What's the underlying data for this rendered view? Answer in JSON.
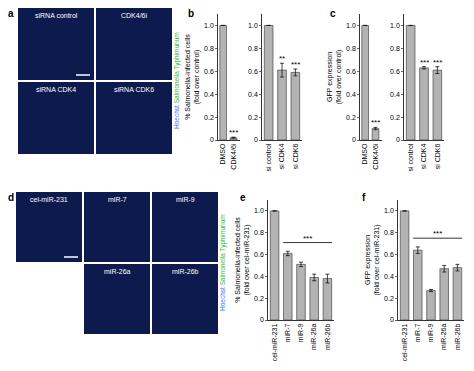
{
  "chart_data": [
    {
      "panel_label": "b",
      "type": "bar",
      "y_label": [
        "% Salmonella-infected cells",
        "(fold over control)"
      ],
      "categories": [
        "DMSO",
        "CDK4/6i"
      ],
      "values": [
        1,
        0.02
      ],
      "errors": [
        0,
        0.005
      ],
      "color": "#b3b3b3",
      "grid": false,
      "ylim": [
        0,
        1.1
      ],
      "yticks": [
        0,
        0.2,
        0.4,
        0.6,
        0.8,
        {
          "value": 1,
          "label": "1.0"
        }
      ],
      "significance": [
        {
          "category": "CDK4/6i",
          "text": "***"
        }
      ]
    },
    {
      "type": "bar",
      "categories": [
        "si control",
        "si CDK4",
        "si CDK6"
      ],
      "values": [
        1,
        0.61,
        0.59
      ],
      "errors": [
        0,
        0.06,
        0.03
      ],
      "color": "#b3b3b3",
      "grid": false,
      "ylim": [
        0,
        1.1
      ],
      "yticks": [
        0,
        0.2,
        0.4,
        0.6,
        0.8,
        {
          "value": 1,
          "label": "1.0"
        }
      ],
      "significance": [
        {
          "category": "si CDK4",
          "text": "**"
        },
        {
          "category": "si CDK6",
          "text": "***"
        }
      ]
    },
    {
      "panel_label": "c",
      "type": "bar",
      "y_label": [
        "GFP expression",
        "(fold over control)"
      ],
      "categories": [
        "DMSO",
        "CDK4/6i"
      ],
      "values": [
        1,
        0.1
      ],
      "errors": [
        0,
        0.01
      ],
      "color": "#b3b3b3",
      "grid": false,
      "ylim": [
        0,
        1.1
      ],
      "yticks": [
        0,
        0.2,
        0.4,
        0.6,
        0.8,
        {
          "value": 1,
          "label": "1.0"
        }
      ],
      "significance": [
        {
          "category": "CDK4/6i",
          "text": "***"
        }
      ]
    },
    {
      "type": "bar",
      "categories": [
        "si control",
        "si CDK4",
        "si CDK6"
      ],
      "values": [
        1,
        0.63,
        0.61
      ],
      "errors": [
        0,
        0.01,
        0.03
      ],
      "color": "#b3b3b3",
      "grid": false,
      "ylim": [
        0,
        1.1
      ],
      "yticks": [
        0,
        0.2,
        0.4,
        0.6,
        0.8,
        {
          "value": 1,
          "label": "1.0"
        }
      ],
      "significance": [
        {
          "category": "si CDK4",
          "text": "***"
        },
        {
          "category": "si CDK6",
          "text": "***"
        }
      ]
    },
    {
      "panel_label": "e",
      "type": "bar",
      "y_label": [
        "% Salmonella-infected cells",
        "(fold over cel-miR-231)"
      ],
      "categories": [
        "cel-miR-231",
        "miR-7",
        "miR-9",
        "miR-26a",
        "miR-26b"
      ],
      "values": [
        1,
        0.61,
        0.51,
        0.39,
        0.38
      ],
      "errors": [
        0,
        0.02,
        0.02,
        0.03,
        0.04
      ],
      "color": "#b3b3b3",
      "grid": false,
      "ylim": [
        0,
        1.1
      ],
      "yticks": [
        0,
        0.2,
        0.4,
        0.6,
        0.8,
        {
          "value": 1,
          "label": "1.0"
        }
      ],
      "significance_bracket": {
        "from": "miR-7",
        "to": "miR-26b",
        "text": "***"
      }
    },
    {
      "panel_label": "f",
      "type": "bar",
      "y_label": [
        "GFP expression",
        "(fold over cel-miR-231)"
      ],
      "categories": [
        "cel-miR-231",
        "miR-7",
        "miR-9",
        "miR-26a",
        "miR-26b"
      ],
      "values": [
        1,
        0.64,
        0.27,
        0.47,
        0.48
      ],
      "errors": [
        0,
        0.03,
        0.01,
        0.03,
        0.03
      ],
      "color": "#b3b3b3",
      "grid": false,
      "ylim": [
        0,
        1.1
      ],
      "yticks": [
        0,
        0.2,
        0.4,
        0.6,
        0.8,
        {
          "value": 1,
          "label": "1.0"
        }
      ],
      "significance_bracket": {
        "from": "miR-7",
        "to": "miR-26b",
        "text": "***"
      }
    }
  ],
  "image_panels": [
    {
      "panel_label": "a",
      "images": [
        [
          "siRNA control",
          "CDK4/6i"
        ],
        [
          "siRNA CDK4",
          "siRNA CDK6"
        ]
      ],
      "channel_labels": [
        {
          "text": "Hoechst",
          "color": "#3a6cff"
        },
        {
          "text": "Salmonella Typhimurium",
          "color": "#2fb82f"
        }
      ]
    },
    {
      "panel_label": "d",
      "images": [
        [
          "cel-miR-231",
          "miR-7",
          "miR-9"
        ],
        [
          null,
          "miR-26a",
          "miR-26b"
        ]
      ],
      "channel_labels": [
        {
          "text": "Hoechst",
          "color": "#3a6cff"
        },
        {
          "text": "Salmonella Typhimurium",
          "color": "#2fb82f"
        }
      ]
    }
  ]
}
